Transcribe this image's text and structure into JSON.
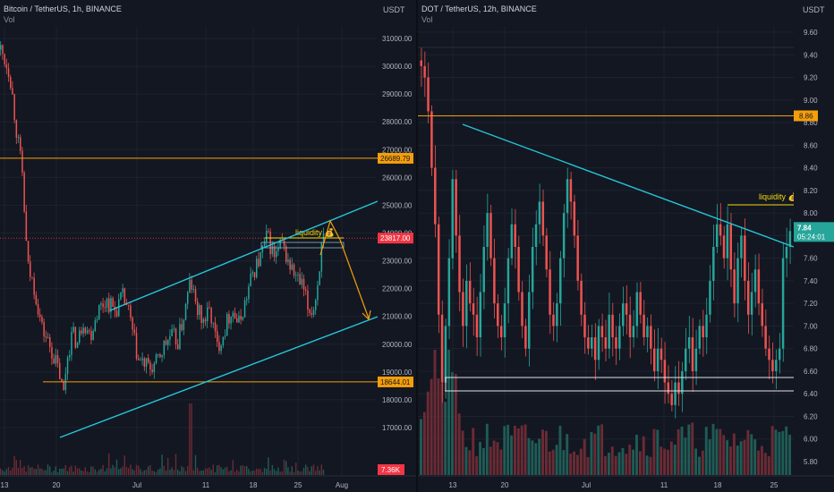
{
  "chart_data": [
    {
      "type": "candlestick",
      "title": "Bitcoin / TetherUS, 1h, BINANCE",
      "subtitle": "Vol",
      "currency": "USDT",
      "ylim": [
        16700,
        31700
      ],
      "y_ticks": [
        "31000.00",
        "30000.00",
        "29000.00",
        "28000.00",
        "27000.00",
        "26000.00",
        "25000.00",
        "24000.00",
        "23000.00",
        "22000.00",
        "21000.00",
        "20000.00",
        "19000.00",
        "18000.00",
        "17000.00"
      ],
      "x_ticks": [
        "13",
        "20",
        "Jul",
        "11",
        "18",
        "25",
        "Aug"
      ],
      "path": [
        [
          0,
          30600
        ],
        [
          10,
          29800
        ],
        [
          18,
          27600
        ],
        [
          24,
          26200
        ],
        [
          30,
          22800
        ],
        [
          38,
          22000
        ],
        [
          46,
          20600
        ],
        [
          54,
          20000
        ],
        [
          60,
          19500
        ],
        [
          66,
          18900
        ],
        [
          70,
          18100
        ],
        [
          74,
          19500
        ],
        [
          80,
          20400
        ],
        [
          86,
          20000
        ],
        [
          92,
          20900
        ],
        [
          100,
          20300
        ],
        [
          108,
          21200
        ],
        [
          118,
          21600
        ],
        [
          128,
          21200
        ],
        [
          136,
          21700
        ],
        [
          142,
          21300
        ],
        [
          148,
          20300
        ],
        [
          154,
          19400
        ],
        [
          160,
          19300
        ],
        [
          166,
          19100
        ],
        [
          174,
          19300
        ],
        [
          182,
          19900
        ],
        [
          190,
          20300
        ],
        [
          198,
          20100
        ],
        [
          206,
          21200
        ],
        [
          212,
          22300
        ],
        [
          218,
          21400
        ],
        [
          226,
          20800
        ],
        [
          234,
          21200
        ],
        [
          242,
          19900
        ],
        [
          250,
          20500
        ],
        [
          258,
          21300
        ],
        [
          266,
          20700
        ],
        [
          274,
          21600
        ],
        [
          282,
          22600
        ],
        [
          290,
          23100
        ],
        [
          298,
          23900
        ],
        [
          306,
          23100
        ],
        [
          314,
          23600
        ],
        [
          322,
          22900
        ],
        [
          330,
          22400
        ],
        [
          338,
          22000
        ],
        [
          344,
          21200
        ],
        [
          350,
          21300
        ],
        [
          354,
          22100
        ],
        [
          358,
          23400
        ],
        [
          362,
          23850
        ]
      ],
      "horizontal_levels": [
        {
          "value": 26689.79,
          "label": "26689.79",
          "color": "#f59e0b"
        },
        {
          "value": 23817.0,
          "label": "23817.00",
          "color": "#f23645"
        },
        {
          "value": 18644.01,
          "label": "18644.01",
          "color": "#f59e0b"
        }
      ],
      "annotations": [
        {
          "text": "liquidity 💰",
          "color": "#f5d90a"
        }
      ],
      "volume_label": "7.36K",
      "colors": {
        "up": "#26a69a",
        "down": "#ef5350",
        "channel": "#26c6da",
        "level": "#f59e0b",
        "arrow": "#f59e0b"
      }
    },
    {
      "type": "candlestick",
      "title": "DOT / TetherUS, 12h, BINANCE",
      "subtitle": "Vol",
      "currency": "USDT",
      "ylim": [
        5.7,
        9.8
      ],
      "y_ticks": [
        "9.60",
        "9.40",
        "9.20",
        "9.00",
        "8.80",
        "8.60",
        "8.40",
        "8.20",
        "8.00",
        "7.80",
        "7.60",
        "7.40",
        "7.20",
        "7.00",
        "6.80",
        "6.60",
        "6.40",
        "6.20",
        "6.00",
        "5.80"
      ],
      "x_ticks": [
        "13",
        "20",
        "Jul",
        "11",
        "18",
        "25"
      ],
      "closes": [
        9.3,
        9.2,
        8.9,
        8.4,
        7.9,
        7.1,
        6.5,
        7.0,
        7.6,
        8.3,
        7.8,
        7.3,
        7.0,
        7.4,
        7.2,
        7.1,
        6.9,
        7.3,
        7.7,
        8.0,
        7.6,
        7.2,
        7.0,
        6.9,
        7.2,
        7.6,
        7.9,
        7.7,
        7.3,
        7.0,
        6.8,
        7.3,
        7.7,
        7.9,
        8.1,
        7.8,
        7.5,
        7.1,
        7.0,
        7.2,
        7.6,
        8.0,
        8.3,
        8.1,
        7.8,
        7.4,
        7.1,
        6.9,
        6.8,
        6.9,
        6.7,
        7.0,
        6.9,
        6.8,
        7.1,
        6.9,
        6.8,
        7.0,
        7.2,
        7.1,
        6.9,
        7.0,
        7.3,
        7.1,
        6.9,
        7.0,
        6.8,
        6.6,
        6.8,
        6.7,
        6.5,
        6.4,
        6.3,
        6.5,
        6.4,
        6.6,
        6.8,
        6.9,
        6.6,
        6.8,
        7.0,
        6.9,
        7.1,
        7.4,
        7.7,
        7.9,
        7.8,
        7.6,
        7.9,
        7.5,
        7.2,
        7.6,
        7.8,
        7.4,
        7.1,
        7.3,
        7.5,
        7.2,
        7.0,
        6.8,
        6.7,
        6.6,
        6.7,
        6.8,
        7.6,
        7.7,
        7.84
      ],
      "horizontal_levels": [
        {
          "value": 8.86,
          "label": "8.86",
          "color": "#f59e0b"
        }
      ],
      "last_price": {
        "value": "7.84",
        "countdown": "05:24:01"
      },
      "annotations": [
        {
          "text": "liquidity 💰",
          "color": "#f5d90a"
        }
      ],
      "colors": {
        "up": "#26a69a",
        "down": "#ef5350",
        "trend": "#26c6da",
        "level": "#f59e0b"
      }
    }
  ]
}
